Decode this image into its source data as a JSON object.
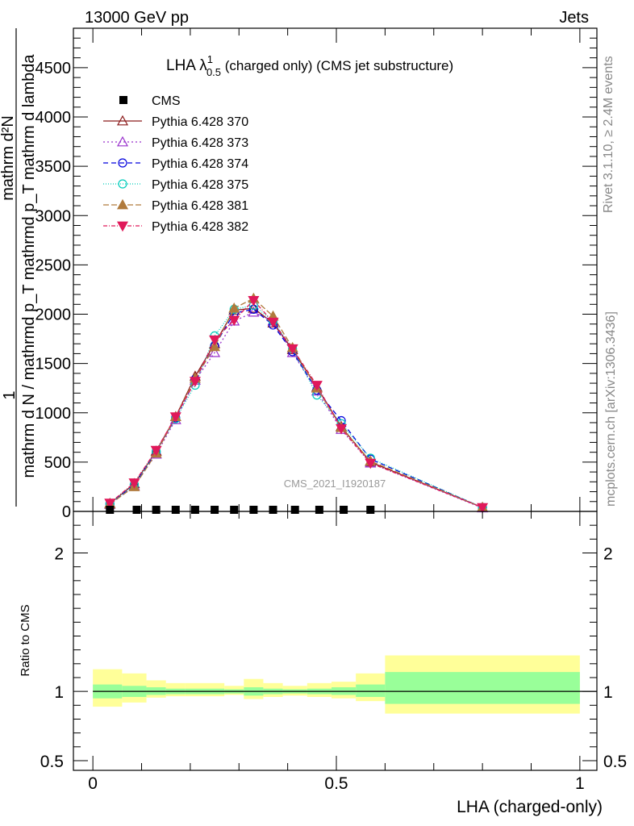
{
  "header": {
    "energy_label": "13000 GeV pp",
    "process_label": "Jets",
    "side_label_rivet": "Rivet 3.1.10, ≥ 2.4M events",
    "side_label_mcplots": "mcplots.cern.ch [arXiv:1306.3436]",
    "watermark": "CMS_2021_I1920187"
  },
  "chart_data": [
    {
      "type": "line",
      "title": "LHA λ^1_0.5 (charged only) (CMS jet substructure)",
      "title_parts": {
        "main": "LHA λ",
        "sup": "1",
        "sub": "0.5",
        "rest": " (charged only) (CMS jet substructure)"
      },
      "ylabel_lines": [
        "1",
        "mathrm d N / mathrmd p_T mathrmd p_T mathrm d lambda",
        "mathrm d²N"
      ],
      "ylim": [
        0,
        4900
      ],
      "xlim": [
        -0.04,
        1.035
      ],
      "yticks": [
        0,
        500,
        1000,
        1500,
        2000,
        2500,
        3000,
        3500,
        4000,
        4500
      ],
      "ytick_labels": [
        "0",
        "500",
        "1000",
        "1500",
        "2000",
        "2500",
        "3000",
        "3500",
        "4000",
        "4500"
      ],
      "legend_placement": "top-left",
      "cms_data": {
        "name": "CMS",
        "x": [
          0.035,
          0.09,
          0.13,
          0.17,
          0.21,
          0.25,
          0.29,
          0.33,
          0.37,
          0.415,
          0.465,
          0.515,
          0.57
        ],
        "y": [
          0,
          0,
          0,
          0,
          0,
          0,
          0,
          0,
          0,
          0,
          0,
          0,
          0
        ]
      },
      "series": [
        {
          "name": "Pythia 6.428 370",
          "color": "#8b1a1a",
          "marker": "triangle-open",
          "dash": "",
          "x": [
            0.035,
            0.085,
            0.13,
            0.17,
            0.21,
            0.25,
            0.29,
            0.33,
            0.37,
            0.41,
            0.46,
            0.51,
            0.57,
            0.8
          ],
          "y": [
            80,
            280,
            610,
            960,
            1370,
            1700,
            2040,
            2060,
            1910,
            1640,
            1260,
            860,
            500,
            40
          ]
        },
        {
          "name": "Pythia 6.428 373",
          "color": "#9932cc",
          "marker": "triangle-open",
          "dash": "2,3",
          "x": [
            0.035,
            0.085,
            0.13,
            0.17,
            0.21,
            0.25,
            0.29,
            0.33,
            0.37,
            0.41,
            0.46,
            0.51,
            0.57,
            0.8
          ],
          "y": [
            70,
            260,
            580,
            930,
            1330,
            1610,
            1930,
            2020,
            1930,
            1610,
            1220,
            830,
            490,
            35
          ]
        },
        {
          "name": "Pythia 6.428 374",
          "color": "#0000dd",
          "marker": "circle-open",
          "dash": "6,4",
          "x": [
            0.035,
            0.085,
            0.13,
            0.17,
            0.21,
            0.25,
            0.29,
            0.33,
            0.37,
            0.41,
            0.46,
            0.51,
            0.57,
            0.8
          ],
          "y": [
            75,
            270,
            600,
            950,
            1340,
            1680,
            2010,
            2050,
            1890,
            1620,
            1230,
            920,
            530,
            40
          ]
        },
        {
          "name": "Pythia 6.428 375",
          "color": "#00ccbb",
          "marker": "circle-open",
          "dash": "1,2",
          "x": [
            0.035,
            0.085,
            0.13,
            0.17,
            0.21,
            0.25,
            0.29,
            0.33,
            0.37,
            0.41,
            0.46,
            0.51,
            0.57,
            0.8
          ],
          "y": [
            80,
            270,
            610,
            940,
            1280,
            1780,
            2050,
            2090,
            1930,
            1650,
            1180,
            890,
            540,
            40
          ]
        },
        {
          "name": "Pythia 6.428 381",
          "color": "#b07a3c",
          "marker": "triangle-filled",
          "dash": "7,3",
          "x": [
            0.035,
            0.085,
            0.13,
            0.17,
            0.21,
            0.25,
            0.29,
            0.33,
            0.37,
            0.41,
            0.46,
            0.51,
            0.57,
            0.8
          ],
          "y": [
            75,
            250,
            590,
            960,
            1350,
            1670,
            2060,
            2160,
            1980,
            1660,
            1250,
            850,
            510,
            40
          ]
        },
        {
          "name": "Pythia 6.428 382",
          "color": "#e0195a",
          "marker": "triangle-down-filled",
          "dash": "5,2,1,2",
          "x": [
            0.035,
            0.085,
            0.13,
            0.17,
            0.21,
            0.25,
            0.29,
            0.33,
            0.37,
            0.41,
            0.46,
            0.51,
            0.57,
            0.8
          ],
          "y": [
            85,
            290,
            620,
            960,
            1320,
            1740,
            1940,
            2140,
            1920,
            1650,
            1280,
            840,
            490,
            40
          ]
        }
      ]
    },
    {
      "type": "area",
      "ylabel": "Ratio to CMS",
      "xlabel": "LHA (charged-only)",
      "xlim": [
        -0.04,
        1.035
      ],
      "xticks": [
        0,
        0.5,
        1
      ],
      "xtick_labels": [
        "0",
        "0.5",
        "1"
      ],
      "ylim": [
        0.43,
        2.3
      ],
      "yticks": [
        0.5,
        1,
        2
      ],
      "ytick_labels": [
        "0.5",
        "1",
        "2"
      ],
      "reference_line": 1,
      "bins": [
        {
          "x0": 0.0,
          "x1": 0.06,
          "stat": [
            0.95,
            1.05
          ],
          "total": [
            0.89,
            1.16
          ]
        },
        {
          "x0": 0.06,
          "x1": 0.11,
          "stat": [
            0.96,
            1.04
          ],
          "total": [
            0.92,
            1.13
          ]
        },
        {
          "x0": 0.11,
          "x1": 0.15,
          "stat": [
            0.975,
            1.03
          ],
          "total": [
            0.955,
            1.08
          ]
        },
        {
          "x0": 0.15,
          "x1": 0.19,
          "stat": [
            0.98,
            1.02
          ],
          "total": [
            0.965,
            1.06
          ]
        },
        {
          "x0": 0.19,
          "x1": 0.23,
          "stat": [
            0.98,
            1.02
          ],
          "total": [
            0.965,
            1.06
          ]
        },
        {
          "x0": 0.23,
          "x1": 0.27,
          "stat": [
            0.98,
            1.02
          ],
          "total": [
            0.965,
            1.06
          ]
        },
        {
          "x0": 0.27,
          "x1": 0.31,
          "stat": [
            0.985,
            1.015
          ],
          "total": [
            0.975,
            1.04
          ]
        },
        {
          "x0": 0.31,
          "x1": 0.35,
          "stat": [
            0.97,
            1.03
          ],
          "total": [
            0.945,
            1.09
          ]
        },
        {
          "x0": 0.35,
          "x1": 0.39,
          "stat": [
            0.98,
            1.02
          ],
          "total": [
            0.96,
            1.06
          ]
        },
        {
          "x0": 0.39,
          "x1": 0.44,
          "stat": [
            0.985,
            1.015
          ],
          "total": [
            0.97,
            1.04
          ]
        },
        {
          "x0": 0.44,
          "x1": 0.49,
          "stat": [
            0.98,
            1.02
          ],
          "total": [
            0.96,
            1.06
          ]
        },
        {
          "x0": 0.49,
          "x1": 0.54,
          "stat": [
            0.975,
            1.03
          ],
          "total": [
            0.95,
            1.07
          ]
        },
        {
          "x0": 0.54,
          "x1": 0.6,
          "stat": [
            0.96,
            1.05
          ],
          "total": [
            0.93,
            1.13
          ]
        },
        {
          "x0": 0.6,
          "x1": 1.0,
          "stat": [
            0.91,
            1.14
          ],
          "total": [
            0.84,
            1.26
          ]
        }
      ],
      "band_colors": {
        "stat": "#99ff99",
        "total": "#ffff99"
      }
    }
  ]
}
